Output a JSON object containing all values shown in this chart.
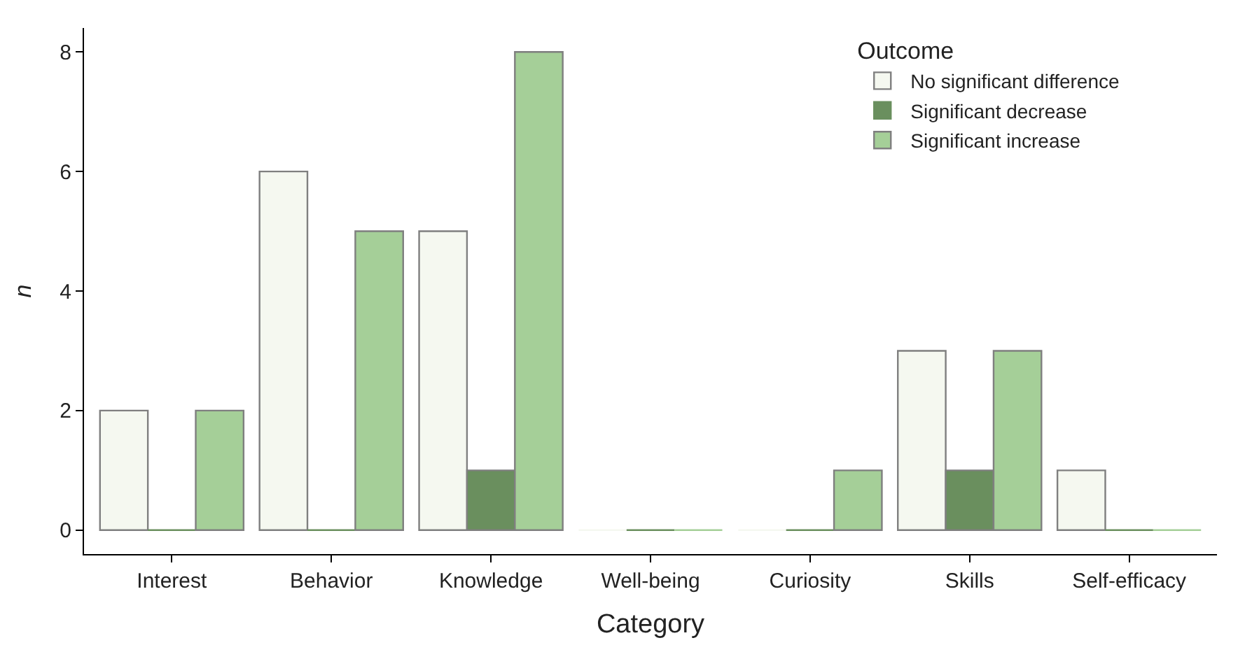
{
  "chart_data": {
    "type": "bar",
    "xlabel": "Category",
    "ylabel": "n",
    "legend_title": "Outcome",
    "categories": [
      "Interest",
      "Behavior",
      "Knowledge",
      "Well-being",
      "Curiosity",
      "Skills",
      "Self-efficacy"
    ],
    "series": [
      {
        "name": "No significant difference",
        "color": "#f5f8f0",
        "values": [
          2,
          6,
          5,
          0,
          0,
          3,
          1
        ]
      },
      {
        "name": "Significant decrease",
        "color": "#6a8f5e",
        "values": [
          0,
          0,
          1,
          0,
          0,
          1,
          0
        ]
      },
      {
        "name": "Significant increase",
        "color": "#a5cf98",
        "values": [
          2,
          5,
          8,
          0,
          1,
          3,
          0
        ]
      }
    ],
    "ylim": [
      -0.4,
      8.4
    ],
    "yticks": [
      0,
      2,
      4,
      6,
      8
    ],
    "legend": "top right"
  }
}
